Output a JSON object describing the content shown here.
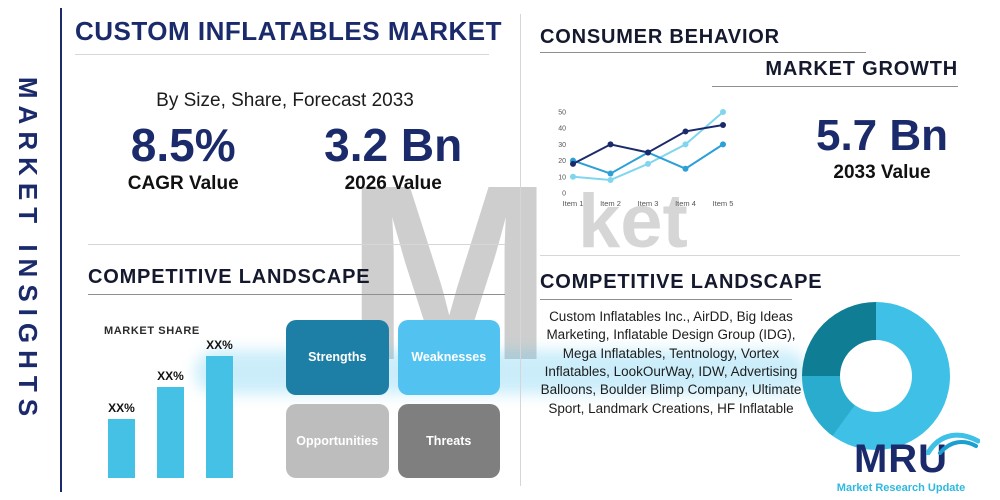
{
  "sidebar": {
    "label": "MARKET INSIGHTS"
  },
  "header": {
    "title": "CUSTOM INFLATABLES MARKET",
    "subtitle": "By Size, Share, Forecast 2033"
  },
  "stats": {
    "cagr": {
      "value": "8.5%",
      "label": "CAGR Value"
    },
    "v2026": {
      "value": "3.2 Bn",
      "label": "2026 Value"
    },
    "v2033": {
      "value": "5.7 Bn",
      "label": "2033 Value"
    }
  },
  "sections": {
    "competitive_left": "COMPETITIVE LANDSCAPE",
    "market_share": "MARKET SHARE",
    "consumer_behavior": "CONSUMER BEHAVIOR",
    "market_growth": "MARKET GROWTH",
    "competitive_right": "COMPETITIVE LANDSCAPE"
  },
  "swot": [
    {
      "label": "Strengths",
      "color": "#1e7fa6"
    },
    {
      "label": "Weaknesses",
      "color": "#52c2f0"
    },
    {
      "label": "Opportunities",
      "color": "#bdbdbd"
    },
    {
      "label": "Threats",
      "color": "#7f7f7f"
    }
  ],
  "companies": "Custom Inflatables Inc., AirDD, Big Ideas Marketing, Inflatable Design Group (IDG), Mega Inflatables, Tentnology, Vortex Inflatables, LookOurWay, IDW, Advertising Balloons, Boulder Blimp Company, Ultimate Sport, Landmark Creations, HF Inflatable",
  "logo": {
    "text": "MRU",
    "caption": "Market Research Update"
  },
  "watermark": {
    "letter": "M",
    "tail": "ket"
  },
  "colors": {
    "navy": "#1b2a6b",
    "accent": "#3fc0e6",
    "divider": "#d6d6d6"
  },
  "chart_data": [
    {
      "type": "line",
      "x": [
        "Item 1",
        "Item 2",
        "Item 3",
        "Item 4",
        "Item 5"
      ],
      "series": [
        {
          "name": "navy-series",
          "color": "#1b2a6b",
          "values": [
            18,
            30,
            25,
            38,
            42
          ]
        },
        {
          "name": "blue-series",
          "color": "#2d9fd8",
          "values": [
            20,
            12,
            25,
            15,
            30
          ]
        },
        {
          "name": "light-blue-series",
          "color": "#7fd6ee",
          "values": [
            10,
            8,
            18,
            30,
            50
          ]
        }
      ],
      "ylim": [
        0,
        50
      ],
      "yticks": [
        0,
        10,
        20,
        30,
        40,
        50
      ],
      "grid": false,
      "legend": false
    },
    {
      "type": "bar",
      "title": "MARKET SHARE",
      "labels": [
        "XX%",
        "XX%",
        "XX%"
      ],
      "values": [
        32,
        49,
        66
      ],
      "ylim": [
        0,
        100
      ],
      "color": "#45c1e6"
    },
    {
      "type": "pie",
      "donut": true,
      "slices": [
        {
          "name": "slice-light",
          "value": 60,
          "color": "#3fc0e6"
        },
        {
          "name": "slice-medium",
          "value": 15,
          "color": "#2aaccf"
        },
        {
          "name": "slice-dark",
          "value": 25,
          "color": "#0f7d93"
        }
      ]
    }
  ]
}
